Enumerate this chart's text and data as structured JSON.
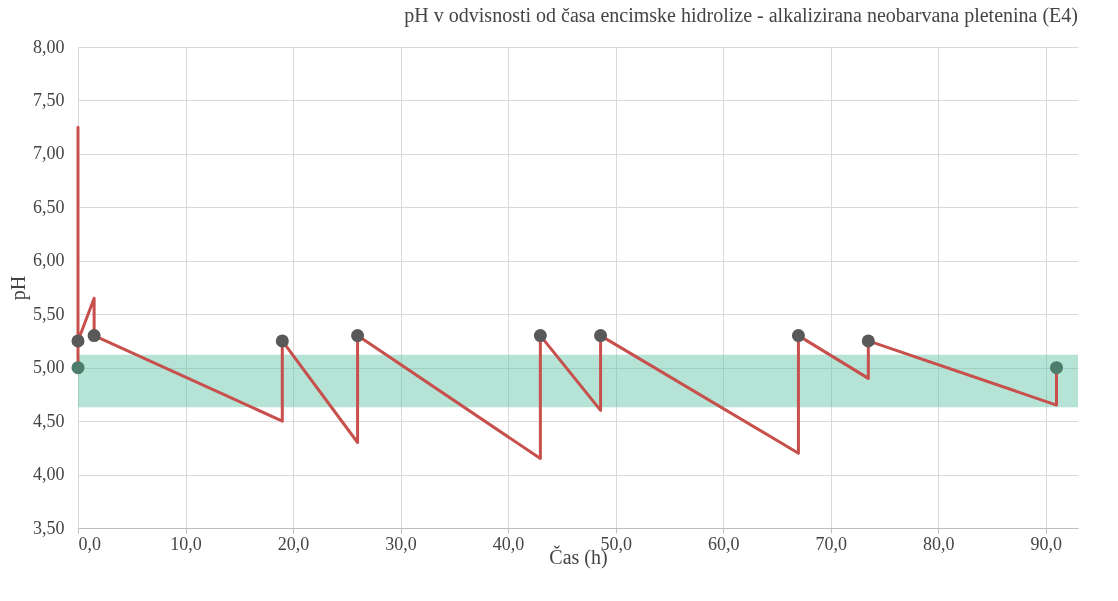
{
  "chart_data": {
    "type": "line",
    "title": "pH v odvisnosti od časa encimske hidrolize - alkalizirana neobarvana pletenina (E4)",
    "xlabel": "Čas (h)",
    "ylabel": "pH",
    "series": [
      {
        "color": "#c8504c",
        "marker": "none",
        "line_style": "solid",
        "x": [
          0,
          0,
          0,
          1.5,
          1.5,
          19,
          19,
          26,
          26,
          43,
          43,
          48.6,
          48.6,
          67,
          67,
          73.5,
          73.5,
          91,
          91
        ],
        "values": [
          5.0,
          7.25,
          5.25,
          5.65,
          5.3,
          4.5,
          5.25,
          4.3,
          5.3,
          4.15,
          5.3,
          4.6,
          5.3,
          4.2,
          5.3,
          4.9,
          5.25,
          4.65,
          5.0
        ]
      },
      {
        "type": "scatter",
        "color": "#595959",
        "marker": "circle",
        "x": [
          0,
          1.5,
          19,
          26,
          43,
          48.6,
          67,
          73.5
        ],
        "values": [
          5.25,
          5.3,
          5.25,
          5.3,
          5.3,
          5.3,
          5.3,
          5.25
        ]
      },
      {
        "type": "scatter",
        "color": "#4f7d6c",
        "marker": "circle",
        "x": [
          0,
          91
        ],
        "values": [
          5.0,
          5.0
        ]
      }
    ],
    "bands": [
      {
        "axis": "y",
        "from": 4.63,
        "to": 5.12,
        "color": "#5cc0a5"
      }
    ],
    "xlim": [
      0,
      93
    ],
    "xticks": [
      {
        "value": 0,
        "label": "0,0"
      },
      {
        "value": 10,
        "label": "10,0"
      },
      {
        "value": 20,
        "label": "20,0"
      },
      {
        "value": 30,
        "label": "30,0"
      },
      {
        "value": 40,
        "label": "40,0"
      },
      {
        "value": 50,
        "label": "50,0"
      },
      {
        "value": 60,
        "label": "60,0"
      },
      {
        "value": 70,
        "label": "70,0"
      },
      {
        "value": 80,
        "label": "80,0"
      },
      {
        "value": 90,
        "label": "90,0"
      }
    ],
    "ylim": [
      3.5,
      8
    ],
    "yticks": [
      {
        "value": 3.5,
        "label": "3,50"
      },
      {
        "value": 4,
        "label": "4,00"
      },
      {
        "value": 4.5,
        "label": "4,50"
      },
      {
        "value": 5,
        "label": "5,00"
      },
      {
        "value": 5.5,
        "label": "5,50"
      },
      {
        "value": 6,
        "label": "6,00"
      },
      {
        "value": 6.5,
        "label": "6,50"
      },
      {
        "value": 7,
        "label": "7,00"
      },
      {
        "value": 7.5,
        "label": "7,50"
      },
      {
        "value": 8,
        "label": "8,00"
      }
    ],
    "grid": true
  }
}
